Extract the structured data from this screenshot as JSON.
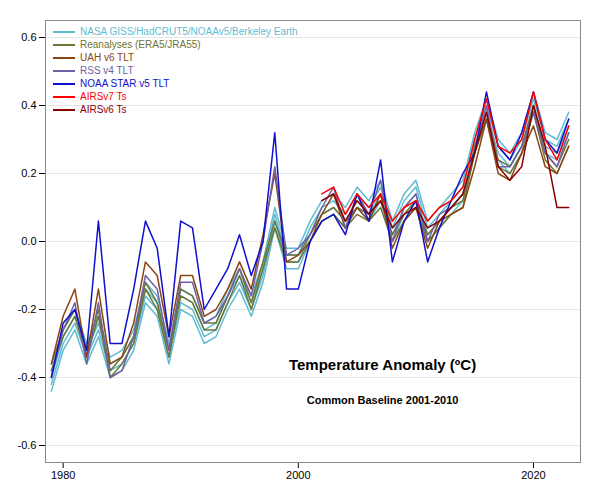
{
  "chart_data": {
    "type": "line",
    "title": "Temperature Anomaly (ºC)",
    "subtitle": "Common Baseline 2001-2010",
    "x": [
      1979,
      1980,
      1981,
      1982,
      1983,
      1984,
      1985,
      1986,
      1987,
      1988,
      1989,
      1990,
      1991,
      1992,
      1993,
      1994,
      1995,
      1996,
      1997,
      1998,
      1999,
      2000,
      2001,
      2002,
      2003,
      2004,
      2005,
      2006,
      2007,
      2008,
      2009,
      2010,
      2011,
      2012,
      2013,
      2014,
      2015,
      2016,
      2017,
      2018,
      2019,
      2020,
      2021,
      2022,
      2023
    ],
    "series": [
      {
        "name": "NASA GISS/HadCRUT5/NOAAv5/Berkeley Earth",
        "color": "#5fbcd3",
        "values": [
          -0.42,
          -0.3,
          -0.24,
          -0.34,
          -0.26,
          -0.38,
          -0.36,
          -0.3,
          -0.16,
          -0.2,
          -0.34,
          -0.18,
          -0.2,
          -0.28,
          -0.26,
          -0.18,
          -0.12,
          -0.2,
          -0.1,
          0.06,
          -0.06,
          -0.06,
          0.02,
          0.08,
          0.1,
          0.06,
          0.12,
          0.08,
          0.14,
          0.02,
          0.1,
          0.14,
          0.02,
          0.06,
          0.1,
          0.14,
          0.28,
          0.38,
          0.26,
          0.22,
          0.28,
          0.4,
          0.28,
          0.26,
          0.34
        ]
      },
      {
        "name": "NASA GISS/HadCRUT5/NOAAv5/Berkeley Earth",
        "color": "#5fbcd3",
        "values": [
          -0.4,
          -0.28,
          -0.22,
          -0.32,
          -0.24,
          -0.36,
          -0.34,
          -0.28,
          -0.14,
          -0.18,
          -0.32,
          -0.16,
          -0.18,
          -0.26,
          -0.24,
          -0.16,
          -0.1,
          -0.18,
          -0.08,
          0.08,
          -0.04,
          -0.04,
          0.04,
          0.1,
          0.12,
          0.08,
          0.14,
          0.1,
          0.16,
          0.04,
          0.12,
          0.16,
          0.04,
          0.08,
          0.12,
          0.16,
          0.3,
          0.4,
          0.28,
          0.24,
          0.3,
          0.42,
          0.3,
          0.28,
          0.36
        ]
      },
      {
        "name": "NASA GISS/HadCRUT5/NOAAv5/Berkeley Earth",
        "color": "#5fbcd3",
        "values": [
          -0.44,
          -0.32,
          -0.26,
          -0.36,
          -0.28,
          -0.4,
          -0.38,
          -0.32,
          -0.18,
          -0.22,
          -0.36,
          -0.2,
          -0.22,
          -0.3,
          -0.28,
          -0.2,
          -0.14,
          -0.22,
          -0.12,
          0.04,
          -0.08,
          -0.08,
          0.0,
          0.06,
          0.08,
          0.04,
          0.1,
          0.06,
          0.12,
          0.0,
          0.08,
          0.12,
          0.0,
          0.04,
          0.08,
          0.12,
          0.26,
          0.36,
          0.24,
          0.2,
          0.26,
          0.38,
          0.26,
          0.24,
          0.32
        ]
      },
      {
        "name": "NASA GISS/HadCRUT5/NOAAv5/Berkeley Earth",
        "color": "#5fbcd3",
        "values": [
          -0.38,
          -0.26,
          -0.2,
          -0.3,
          -0.22,
          -0.34,
          -0.32,
          -0.26,
          -0.12,
          -0.16,
          -0.3,
          -0.14,
          -0.16,
          -0.24,
          -0.22,
          -0.14,
          -0.08,
          -0.16,
          -0.06,
          0.1,
          -0.02,
          -0.02,
          0.06,
          0.12,
          0.14,
          0.1,
          0.16,
          0.12,
          0.18,
          0.06,
          0.14,
          0.18,
          0.06,
          0.1,
          0.14,
          0.18,
          0.32,
          0.42,
          0.3,
          0.26,
          0.32,
          0.44,
          0.32,
          0.3,
          0.38
        ]
      },
      {
        "name": "Reanalyses (ERA5/JRA55)",
        "color": "#6b7535",
        "values": [
          -0.36,
          -0.26,
          -0.2,
          -0.32,
          -0.2,
          -0.38,
          -0.34,
          -0.28,
          -0.12,
          -0.18,
          -0.32,
          -0.14,
          -0.16,
          -0.24,
          -0.24,
          -0.16,
          -0.08,
          -0.18,
          -0.06,
          0.06,
          -0.04,
          -0.04,
          0.02,
          0.08,
          0.1,
          0.06,
          0.1,
          0.08,
          0.12,
          0.02,
          0.08,
          0.12,
          0.02,
          0.06,
          0.1,
          0.12,
          0.28,
          0.38,
          0.24,
          0.22,
          0.28,
          0.4,
          0.26,
          0.22,
          0.3
        ]
      },
      {
        "name": "Reanalyses (ERA5/JRA55)",
        "color": "#6b7535",
        "values": [
          -0.38,
          -0.28,
          -0.22,
          -0.34,
          -0.22,
          -0.4,
          -0.36,
          -0.3,
          -0.14,
          -0.2,
          -0.34,
          -0.16,
          -0.18,
          -0.26,
          -0.26,
          -0.18,
          -0.1,
          -0.2,
          -0.08,
          0.04,
          -0.06,
          -0.06,
          0.0,
          0.06,
          0.08,
          0.04,
          0.08,
          0.06,
          0.1,
          0.0,
          0.06,
          0.1,
          0.0,
          0.04,
          0.08,
          0.1,
          0.26,
          0.36,
          0.22,
          0.2,
          0.26,
          0.38,
          0.24,
          0.2,
          0.28
        ]
      },
      {
        "name": "UAH v6 TLT",
        "color": "#8B4513",
        "values": [
          -0.36,
          -0.22,
          -0.14,
          -0.34,
          -0.14,
          -0.36,
          -0.34,
          -0.24,
          -0.06,
          -0.1,
          -0.28,
          -0.1,
          -0.1,
          -0.22,
          -0.2,
          -0.14,
          -0.06,
          -0.14,
          0.02,
          0.2,
          -0.06,
          -0.04,
          0.0,
          0.08,
          0.14,
          0.04,
          0.1,
          0.06,
          0.14,
          -0.02,
          0.06,
          0.1,
          -0.02,
          0.06,
          0.08,
          0.1,
          0.22,
          0.36,
          0.2,
          0.18,
          0.26,
          0.34,
          0.22,
          0.2,
          0.28
        ]
      },
      {
        "name": "RSS v4 TLT",
        "color": "#7060a8",
        "values": [
          -0.4,
          -0.26,
          -0.18,
          -0.36,
          -0.18,
          -0.4,
          -0.38,
          -0.28,
          -0.1,
          -0.14,
          -0.32,
          -0.12,
          -0.12,
          -0.24,
          -0.22,
          -0.16,
          -0.08,
          -0.16,
          0.0,
          0.22,
          -0.04,
          -0.02,
          0.02,
          0.1,
          0.16,
          0.04,
          0.14,
          0.08,
          0.18,
          0.0,
          0.1,
          0.14,
          0.0,
          0.08,
          0.1,
          0.14,
          0.26,
          0.4,
          0.22,
          0.22,
          0.28,
          0.38,
          0.26,
          0.22,
          0.32
        ]
      },
      {
        "name": "NOAA STAR v5 TLT",
        "color": "#1010cc",
        "values": [
          -0.4,
          -0.24,
          -0.2,
          -0.32,
          0.06,
          -0.3,
          -0.3,
          -0.14,
          0.06,
          -0.02,
          -0.28,
          0.06,
          0.04,
          -0.2,
          -0.14,
          -0.08,
          0.02,
          -0.1,
          0.0,
          0.32,
          -0.14,
          -0.14,
          0.0,
          0.06,
          0.08,
          0.02,
          0.14,
          0.06,
          0.24,
          -0.06,
          0.06,
          0.12,
          -0.06,
          0.04,
          0.12,
          0.2,
          0.26,
          0.44,
          0.28,
          0.24,
          0.32,
          0.44,
          0.3,
          0.26,
          0.36
        ]
      },
      {
        "name": "AIRSv7 Ts",
        "color": "#FF0000",
        "values": [
          null,
          null,
          null,
          null,
          null,
          null,
          null,
          null,
          null,
          null,
          null,
          null,
          null,
          null,
          null,
          null,
          null,
          null,
          null,
          null,
          null,
          null,
          null,
          0.14,
          0.16,
          0.08,
          0.14,
          0.1,
          0.14,
          0.06,
          0.1,
          0.12,
          0.06,
          0.1,
          0.12,
          0.16,
          0.3,
          0.42,
          0.28,
          0.26,
          0.3,
          0.44,
          0.3,
          0.24,
          0.34
        ]
      },
      {
        "name": "AIRSv6 Ts",
        "color": "#8B0000",
        "values": [
          null,
          null,
          null,
          null,
          null,
          null,
          null,
          null,
          null,
          null,
          null,
          null,
          null,
          null,
          null,
          null,
          null,
          null,
          null,
          null,
          null,
          null,
          null,
          0.12,
          0.14,
          0.06,
          0.12,
          0.08,
          0.12,
          0.04,
          0.08,
          0.1,
          0.04,
          0.06,
          0.1,
          0.14,
          0.26,
          0.38,
          0.22,
          0.18,
          0.22,
          0.4,
          0.28,
          0.1,
          0.1
        ]
      }
    ],
    "xlim": [
      1978.5,
      2024.0
    ],
    "ylim": [
      -0.65,
      0.65
    ],
    "xticks": [
      1980,
      2000,
      2020
    ],
    "yticks": [
      -0.6,
      -0.4,
      -0.2,
      {
        "value": 0,
        "label": "0.0"
      },
      0.2,
      0.4,
      0.6
    ],
    "grid": true,
    "legend": "upper left"
  }
}
